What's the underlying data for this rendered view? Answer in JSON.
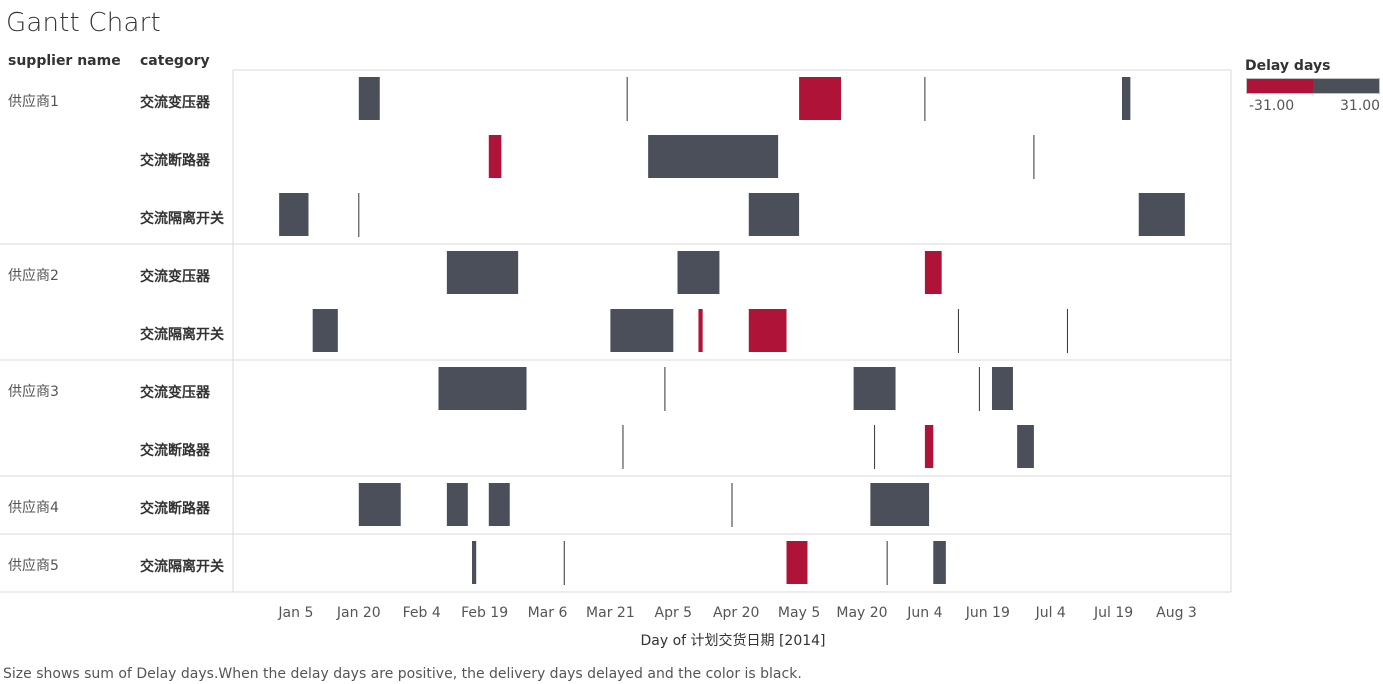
{
  "title": "Gantt Chart",
  "headers": {
    "supplier": "supplier name",
    "category": "category"
  },
  "legend": {
    "title": "Delay days",
    "min_label": "-31.00",
    "max_label": "31.00",
    "negative_color": "#B01338",
    "positive_color": "#4A4F5A"
  },
  "caption": "Size shows sum of Delay days.When the delay days are positive, the delivery days delayed and the color is black.",
  "chart_data": {
    "type": "gantt",
    "xlabel": "Day of 计划交货日期 [2014]",
    "x_ticks": [
      "Jan 5",
      "Jan 20",
      "Feb 4",
      "Feb 19",
      "Mar 6",
      "Mar 21",
      "Apr 5",
      "Apr 20",
      "May 5",
      "May 20",
      "Jun 4",
      "Jun 19",
      "Jul 4",
      "Jul 19",
      "Aug 3"
    ],
    "x_range": [
      "2013-12-21",
      "2014-08-16"
    ],
    "size": "sum of Delay days",
    "color": "sign of Delay days",
    "rows": [
      {
        "supplier": "供应商1",
        "category": "交流变压器",
        "tasks": [
          {
            "start": "2014-01-20",
            "delay_days": 5
          },
          {
            "start": "2014-03-25",
            "delay_days": 0
          },
          {
            "start": "2014-05-05",
            "delay_days": -10
          },
          {
            "start": "2014-06-04",
            "delay_days": 0
          },
          {
            "start": "2014-07-21",
            "delay_days": 2
          }
        ]
      },
      {
        "supplier": "供应商1",
        "category": "交流断路器",
        "tasks": [
          {
            "start": "2014-02-20",
            "delay_days": -3
          },
          {
            "start": "2014-03-30",
            "delay_days": 31
          },
          {
            "start": "2014-06-30",
            "delay_days": 0
          }
        ]
      },
      {
        "supplier": "供应商1",
        "category": "交流隔离开关",
        "tasks": [
          {
            "start": "2014-01-01",
            "delay_days": 7
          },
          {
            "start": "2014-01-20",
            "delay_days": 0
          },
          {
            "start": "2014-04-23",
            "delay_days": 12
          },
          {
            "start": "2014-07-25",
            "delay_days": 11
          }
        ]
      },
      {
        "supplier": "供应商2",
        "category": "交流变压器",
        "tasks": [
          {
            "start": "2014-02-10",
            "delay_days": 17
          },
          {
            "start": "2014-04-06",
            "delay_days": 10
          },
          {
            "start": "2014-06-04",
            "delay_days": -4
          }
        ]
      },
      {
        "supplier": "供应商2",
        "category": "交流隔离开关",
        "tasks": [
          {
            "start": "2014-01-09",
            "delay_days": 6
          },
          {
            "start": "2014-03-21",
            "delay_days": 15
          },
          {
            "start": "2014-04-11",
            "delay_days": -1
          },
          {
            "start": "2014-04-23",
            "delay_days": -9
          },
          {
            "start": "2014-06-12",
            "delay_days": 0
          },
          {
            "start": "2014-07-08",
            "delay_days": 0
          }
        ]
      },
      {
        "supplier": "供应商3",
        "category": "交流变压器",
        "tasks": [
          {
            "start": "2014-02-08",
            "delay_days": 21
          },
          {
            "start": "2014-04-03",
            "delay_days": 0
          },
          {
            "start": "2014-05-18",
            "delay_days": 10
          },
          {
            "start": "2014-06-17",
            "delay_days": 0
          },
          {
            "start": "2014-06-20",
            "delay_days": 5
          }
        ]
      },
      {
        "supplier": "供应商3",
        "category": "交流断路器",
        "tasks": [
          {
            "start": "2014-03-24",
            "delay_days": 0
          },
          {
            "start": "2014-05-23",
            "delay_days": 0
          },
          {
            "start": "2014-06-04",
            "delay_days": -2
          },
          {
            "start": "2014-06-26",
            "delay_days": 4
          }
        ]
      },
      {
        "supplier": "供应商4",
        "category": "交流断路器",
        "tasks": [
          {
            "start": "2014-01-20",
            "delay_days": 10
          },
          {
            "start": "2014-02-10",
            "delay_days": 5
          },
          {
            "start": "2014-02-20",
            "delay_days": 5
          },
          {
            "start": "2014-04-19",
            "delay_days": 0
          },
          {
            "start": "2014-05-22",
            "delay_days": 14
          }
        ]
      },
      {
        "supplier": "供应商5",
        "category": "交流隔离开关",
        "tasks": [
          {
            "start": "2014-02-16",
            "delay_days": 1
          },
          {
            "start": "2014-03-10",
            "delay_days": 0
          },
          {
            "start": "2014-05-02",
            "delay_days": -5
          },
          {
            "start": "2014-05-26",
            "delay_days": 0
          },
          {
            "start": "2014-06-06",
            "delay_days": 3
          }
        ]
      }
    ]
  }
}
